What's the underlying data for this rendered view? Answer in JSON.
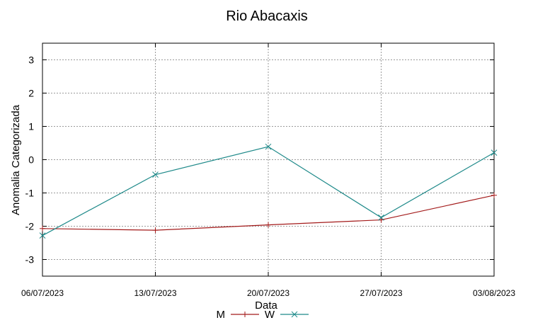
{
  "chart_data": {
    "type": "line",
    "title": "Rio Abacaxis",
    "xlabel": "Data",
    "ylabel": "Anomalia Categorizada",
    "categories": [
      "06/07/2023",
      "13/07/2023",
      "20/07/2023",
      "27/07/2023",
      "03/08/2023"
    ],
    "ylim": [
      -3.5,
      3.5
    ],
    "yticks": [
      -3,
      -2,
      -1,
      0,
      1,
      2,
      3
    ],
    "grid": true,
    "legend_position": "bottom",
    "series": [
      {
        "name": "M",
        "color": "#a31a1a",
        "marker": "plus",
        "values": [
          -2.07,
          -2.12,
          -1.96,
          -1.81,
          -1.07
        ]
      },
      {
        "name": "W",
        "color": "#1f8a8a",
        "marker": "cross",
        "values": [
          -2.28,
          -0.45,
          0.39,
          -1.74,
          0.21
        ]
      }
    ]
  }
}
